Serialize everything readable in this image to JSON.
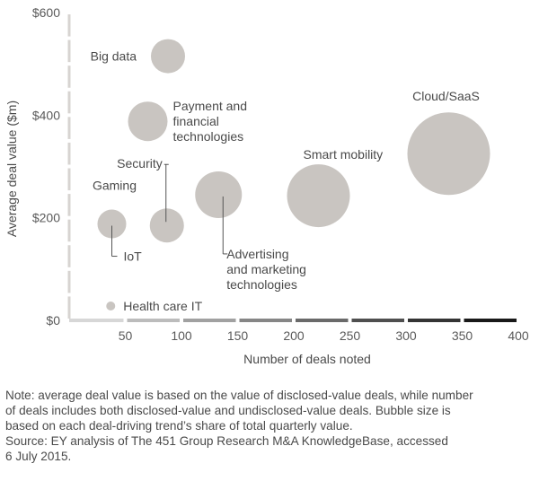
{
  "chart_data": {
    "type": "scatter",
    "variant": "bubble",
    "xlabel": "Number of deals noted",
    "ylabel": "Average deal value ($m)",
    "xlim": [
      0,
      400
    ],
    "ylim": [
      0,
      600
    ],
    "x_ticks": [
      "50",
      "100",
      "150",
      "200",
      "250",
      "300",
      "350",
      "400"
    ],
    "y_ticks": [
      "$0",
      "$200",
      "$400",
      "$600"
    ],
    "x_axis_style": "segmented gradient bar, light to dark grey",
    "bubble_color": "#c9c5c1",
    "grid": false,
    "points": [
      {
        "name": "Big data",
        "x": 88,
        "y": 515,
        "size": 19
      },
      {
        "name": "Payment and financial technologies",
        "x": 70,
        "y": 388,
        "size": 22
      },
      {
        "name": "Security",
        "x": 87,
        "y": 185,
        "size": 19
      },
      {
        "name": "Gaming",
        "x": 40,
        "y": 197,
        "size": 10
      },
      {
        "name": "IoT",
        "x": 38,
        "y": 188,
        "size": 16
      },
      {
        "name": "Advertising and marketing technologies",
        "x": 133,
        "y": 245,
        "size": 26
      },
      {
        "name": "Smart mobility",
        "x": 222,
        "y": 243,
        "size": 35
      },
      {
        "name": "Cloud/SaaS",
        "x": 338,
        "y": 325,
        "size": 46
      },
      {
        "name": "Health care IT",
        "x": 37,
        "y": 28,
        "size": 5
      }
    ],
    "labels": [
      {
        "point": "Big data",
        "lines": [
          "Big data"
        ]
      },
      {
        "point": "Payment and financial technologies",
        "lines": [
          "Payment and",
          "financial",
          "technologies"
        ]
      },
      {
        "point": "Security",
        "lines": [
          "Security"
        ]
      },
      {
        "point": "Gaming",
        "lines": [
          "Gaming"
        ]
      },
      {
        "point": "IoT",
        "lines": [
          "IoT"
        ]
      },
      {
        "point": "Advertising and marketing technologies",
        "lines": [
          "Advertising",
          "and marketing",
          "technologies"
        ]
      },
      {
        "point": "Smart mobility",
        "lines": [
          "Smart mobility"
        ]
      },
      {
        "point": "Cloud/SaaS",
        "lines": [
          "Cloud/SaaS"
        ]
      },
      {
        "point": "Health care IT",
        "lines": [
          "Health care IT"
        ]
      }
    ]
  },
  "note": {
    "lines": [
      "Note: average deal value is based on the value of disclosed-value deals, while number",
      "of deals includes both disclosed-value and undisclosed-value deals. Bubble size is",
      "based on each deal-driving trend’s share of total quarterly value.",
      "Source: EY analysis of The 451 Group Research M&A KnowledgeBase, accessed",
      "6 July 2015."
    ]
  }
}
